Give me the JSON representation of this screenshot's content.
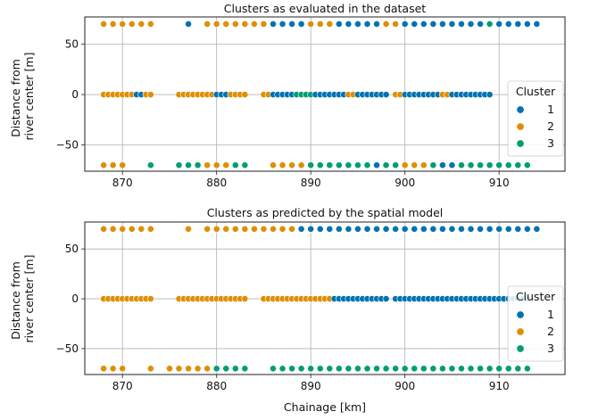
{
  "colors": {
    "1": "#0173b2",
    "2": "#de8f05",
    "3": "#029e73"
  },
  "chart_data": [
    {
      "type": "scatter",
      "title": "Clusters as evaluated in the dataset",
      "ylabel": [
        "Distance from",
        "river center [m]"
      ],
      "xlabel": "",
      "xlim": [
        866,
        917
      ],
      "ylim": [
        -76,
        77
      ],
      "xticks": [
        870,
        880,
        890,
        900,
        910
      ],
      "yticks": [
        50,
        0,
        -50
      ],
      "ytick_labels": [
        "50",
        "0",
        "−50"
      ],
      "grid": true,
      "legend": {
        "title": "Cluster",
        "entries": [
          "1",
          "2",
          "3"
        ],
        "placement": "right"
      },
      "rows": [
        {
          "y": 70,
          "segments": [
            {
              "cluster": 2,
              "x0": 868,
              "x1": 873,
              "step": 1
            },
            {
              "cluster": 1,
              "x0": 877,
              "x1": 877,
              "step": 1
            },
            {
              "cluster": 2,
              "x0": 879,
              "x1": 885,
              "step": 1
            },
            {
              "cluster": 1,
              "x0": 886,
              "x1": 889,
              "step": 1
            },
            {
              "cluster": 2,
              "x0": 890,
              "x1": 892,
              "step": 1
            },
            {
              "cluster": 1,
              "x0": 893,
              "x1": 897,
              "step": 1
            },
            {
              "cluster": 2,
              "x0": 898,
              "x1": 899,
              "step": 1
            },
            {
              "cluster": 1,
              "x0": 900,
              "x1": 908,
              "step": 1
            },
            {
              "cluster": 3,
              "x0": 909,
              "x1": 909,
              "step": 1
            },
            {
              "cluster": 1,
              "x0": 910,
              "x1": 914,
              "step": 1
            }
          ]
        },
        {
          "y": 0,
          "segments": [
            {
              "cluster": 2,
              "x0": 868,
              "x1": 871,
              "step": 0.5
            },
            {
              "cluster": 1,
              "x0": 871.5,
              "x1": 872,
              "step": 0.5
            },
            {
              "cluster": 2,
              "x0": 872.5,
              "x1": 873,
              "step": 0.5
            },
            {
              "cluster": 2,
              "x0": 876,
              "x1": 879.5,
              "step": 0.5
            },
            {
              "cluster": 1,
              "x0": 880,
              "x1": 881,
              "step": 0.5
            },
            {
              "cluster": 2,
              "x0": 881.5,
              "x1": 883,
              "step": 0.5
            },
            {
              "cluster": 2,
              "x0": 885,
              "x1": 885.5,
              "step": 0.5
            },
            {
              "cluster": 1,
              "x0": 886,
              "x1": 888,
              "step": 0.5
            },
            {
              "cluster": 3,
              "x0": 888.5,
              "x1": 890,
              "step": 0.5
            },
            {
              "cluster": 1,
              "x0": 890.5,
              "x1": 893.5,
              "step": 0.5
            },
            {
              "cluster": 2,
              "x0": 894,
              "x1": 894.5,
              "step": 0.5
            },
            {
              "cluster": 1,
              "x0": 895,
              "x1": 898,
              "step": 0.5
            },
            {
              "cluster": 2,
              "x0": 899,
              "x1": 899.5,
              "step": 0.5
            },
            {
              "cluster": 1,
              "x0": 900,
              "x1": 903.5,
              "step": 0.5
            },
            {
              "cluster": 2,
              "x0": 904,
              "x1": 904.5,
              "step": 0.5
            },
            {
              "cluster": 1,
              "x0": 905,
              "x1": 909,
              "step": 0.5
            }
          ]
        },
        {
          "y": -70,
          "segments": [
            {
              "cluster": 2,
              "x0": 868,
              "x1": 870,
              "step": 1
            },
            {
              "cluster": 3,
              "x0": 873,
              "x1": 873,
              "step": 1
            },
            {
              "cluster": 3,
              "x0": 876,
              "x1": 878,
              "step": 1
            },
            {
              "cluster": 2,
              "x0": 879,
              "x1": 881,
              "step": 1
            },
            {
              "cluster": 3,
              "x0": 882,
              "x1": 883,
              "step": 1
            },
            {
              "cluster": 2,
              "x0": 886,
              "x1": 889,
              "step": 1
            },
            {
              "cluster": 3,
              "x0": 890,
              "x1": 896,
              "step": 1
            },
            {
              "cluster": 1,
              "x0": 897,
              "x1": 897,
              "step": 1
            },
            {
              "cluster": 3,
              "x0": 898,
              "x1": 899,
              "step": 1
            },
            {
              "cluster": 2,
              "x0": 900,
              "x1": 902,
              "step": 1
            },
            {
              "cluster": 3,
              "x0": 903,
              "x1": 903,
              "step": 1
            },
            {
              "cluster": 1,
              "x0": 904,
              "x1": 905,
              "step": 1
            },
            {
              "cluster": 3,
              "x0": 906,
              "x1": 913,
              "step": 1
            }
          ]
        }
      ]
    },
    {
      "type": "scatter",
      "title": "Clusters as predicted by the spatial model",
      "ylabel": [
        "Distance from",
        "river center [m]"
      ],
      "xlabel": "Chainage [km]",
      "xlim": [
        866,
        917
      ],
      "ylim": [
        -76,
        77
      ],
      "xticks": [
        870,
        880,
        890,
        900,
        910
      ],
      "yticks": [
        50,
        0,
        -50
      ],
      "ytick_labels": [
        "50",
        "0",
        "−50"
      ],
      "grid": true,
      "legend": {
        "title": "Cluster",
        "entries": [
          "1",
          "2",
          "3"
        ],
        "placement": "right"
      },
      "rows": [
        {
          "y": 70,
          "segments": [
            {
              "cluster": 2,
              "x0": 868,
              "x1": 873,
              "step": 1
            },
            {
              "cluster": 2,
              "x0": 877,
              "x1": 877,
              "step": 1
            },
            {
              "cluster": 2,
              "x0": 879,
              "x1": 888,
              "step": 1
            },
            {
              "cluster": 1,
              "x0": 889,
              "x1": 914,
              "step": 1
            }
          ]
        },
        {
          "y": 0,
          "segments": [
            {
              "cluster": 2,
              "x0": 868,
              "x1": 873,
              "step": 0.5
            },
            {
              "cluster": 2,
              "x0": 876,
              "x1": 883,
              "step": 0.5
            },
            {
              "cluster": 2,
              "x0": 885,
              "x1": 892,
              "step": 0.5
            },
            {
              "cluster": 1,
              "x0": 892.5,
              "x1": 898,
              "step": 0.5
            },
            {
              "cluster": 1,
              "x0": 899,
              "x1": 913,
              "step": 0.5
            }
          ]
        },
        {
          "y": -70,
          "segments": [
            {
              "cluster": 2,
              "x0": 868,
              "x1": 870,
              "step": 1
            },
            {
              "cluster": 2,
              "x0": 873,
              "x1": 873,
              "step": 1
            },
            {
              "cluster": 2,
              "x0": 875,
              "x1": 879,
              "step": 1
            },
            {
              "cluster": 3,
              "x0": 880,
              "x1": 883,
              "step": 1
            },
            {
              "cluster": 3,
              "x0": 886,
              "x1": 913,
              "step": 1
            }
          ]
        }
      ]
    }
  ]
}
